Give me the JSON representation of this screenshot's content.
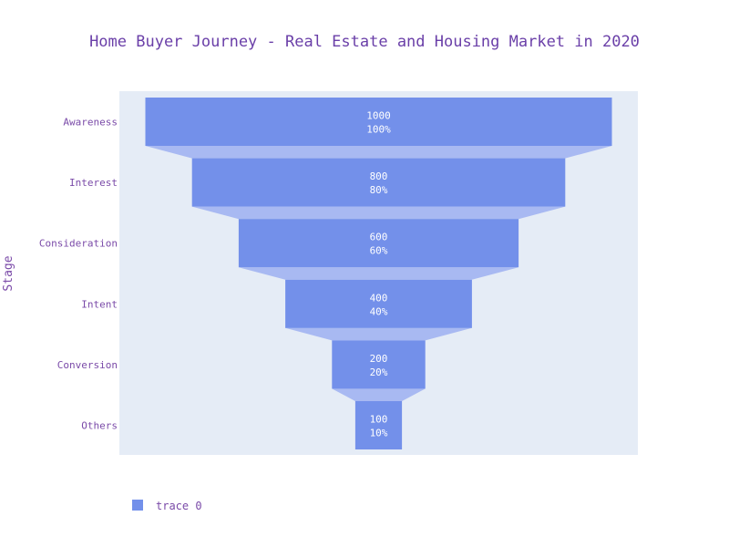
{
  "chart_data": {
    "type": "funnel",
    "title": "Home Buyer Journey - Real Estate and Housing Market in 2020",
    "ylabel": "Stage",
    "xlabel": "",
    "categories": [
      "Awareness",
      "Interest",
      "Consideration",
      "Intent",
      "Conversion",
      "Others"
    ],
    "series": [
      {
        "name": "trace 0",
        "values": [
          1000,
          800,
          600,
          400,
          200,
          100
        ],
        "percent_labels": [
          "100%",
          "80%",
          "60%",
          "40%",
          "20%",
          "10%"
        ]
      }
    ],
    "legend": {
      "position": "bottom-left",
      "entries": [
        "trace 0"
      ]
    },
    "grid": false
  },
  "colors": {
    "bar": "#7390ea",
    "connector": "#a8b9f2",
    "plot_background": "#e5ecf6",
    "title": "#6a3fa8",
    "axis_text": "#7a4aa8",
    "bar_text": "#ffffff"
  }
}
